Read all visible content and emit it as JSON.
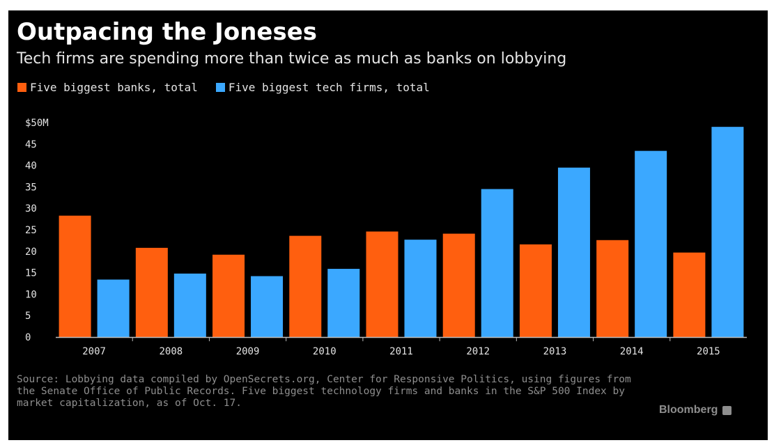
{
  "chart_data": {
    "type": "bar",
    "title": "Outpacing the Joneses",
    "subtitle": "Tech firms are spending more than twice as much as banks on lobbying",
    "categories": [
      "2007",
      "2008",
      "2009",
      "2010",
      "2011",
      "2012",
      "2013",
      "2014",
      "2015"
    ],
    "series": [
      {
        "name": "Five biggest banks, total",
        "color": "#ff5f0f",
        "values": [
          28.3,
          20.8,
          19.2,
          23.6,
          24.6,
          24.1,
          21.6,
          22.6,
          19.7
        ]
      },
      {
        "name": "Five biggest tech firms, total",
        "color": "#3ba8ff",
        "values": [
          13.4,
          14.8,
          14.2,
          15.9,
          22.7,
          34.5,
          39.5,
          43.4,
          49.0
        ]
      }
    ],
    "ylim": [
      0,
      50
    ],
    "yticks": [
      {
        "value": 0,
        "label": "0"
      },
      {
        "value": 5,
        "label": "5"
      },
      {
        "value": 10,
        "label": "10"
      },
      {
        "value": 15,
        "label": "15"
      },
      {
        "value": 20,
        "label": "20"
      },
      {
        "value": 25,
        "label": "25"
      },
      {
        "value": 30,
        "label": "30"
      },
      {
        "value": 35,
        "label": "35"
      },
      {
        "value": 40,
        "label": "40"
      },
      {
        "value": 45,
        "label": "45"
      },
      {
        "value": 50,
        "label": "$50M"
      }
    ],
    "grid": false,
    "legend_position": "top-left",
    "source": "Source: Lobbying data compiled by OpenSecrets.org, Center for Responsive Politics, using figures from the Senate Office of Public Records. Five biggest technology firms and banks in the S&P 500 Index by market capitalization, as of Oct. 17.",
    "brand": "Bloomberg"
  }
}
